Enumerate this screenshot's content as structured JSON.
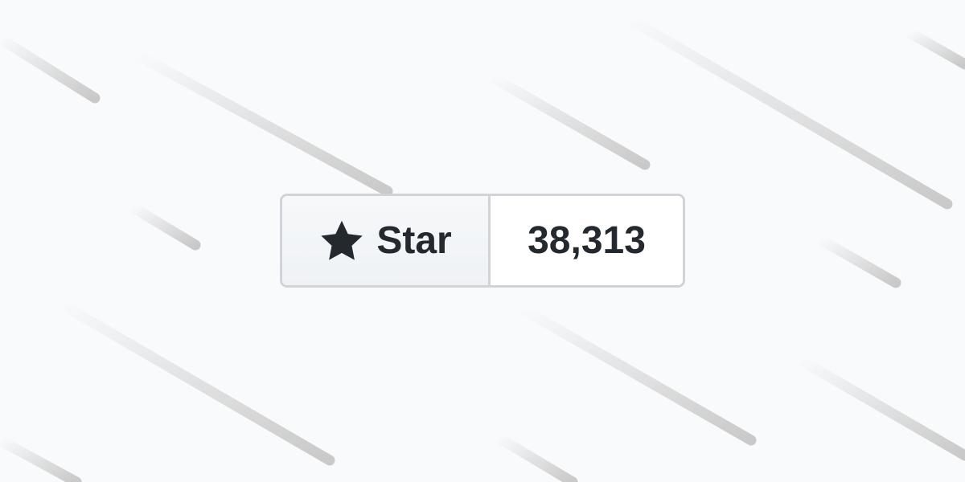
{
  "star_widget": {
    "button_label": "Star",
    "count": "38,313",
    "icon": "star-icon"
  },
  "colors": {
    "background": "#f9fafc",
    "border": "#d0d4d9",
    "text": "#24292f",
    "streak": "#c9c9c9"
  }
}
